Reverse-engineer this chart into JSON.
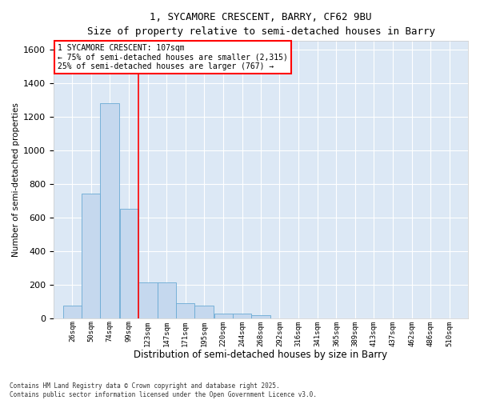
{
  "title_line1": "1, SYCAMORE CRESCENT, BARRY, CF62 9BU",
  "title_line2": "Size of property relative to semi-detached houses in Barry",
  "xlabel": "Distribution of semi-detached houses by size in Barry",
  "ylabel": "Number of semi-detached properties",
  "bar_color": "#c5d8ee",
  "bar_edge_color": "#6aaad4",
  "background_color": "#dce8f5",
  "vline_color": "red",
  "categories": [
    "26sqm",
    "50sqm",
    "74sqm",
    "99sqm",
    "123sqm",
    "147sqm",
    "171sqm",
    "195sqm",
    "220sqm",
    "244sqm",
    "268sqm",
    "292sqm",
    "316sqm",
    "341sqm",
    "365sqm",
    "389sqm",
    "413sqm",
    "437sqm",
    "462sqm",
    "486sqm",
    "510sqm"
  ],
  "bin_edges": [
    26,
    50,
    74,
    99,
    123,
    147,
    171,
    195,
    220,
    244,
    268,
    292,
    316,
    341,
    365,
    389,
    413,
    437,
    462,
    486,
    510
  ],
  "bin_width": 24,
  "values": [
    75,
    740,
    1280,
    650,
    215,
    215,
    90,
    75,
    30,
    30,
    20,
    0,
    0,
    0,
    0,
    0,
    0,
    0,
    0,
    0,
    0
  ],
  "vline_x_bin": 3,
  "ylim": [
    0,
    1650
  ],
  "yticks": [
    0,
    200,
    400,
    600,
    800,
    1000,
    1200,
    1400,
    1600
  ],
  "annotation_title": "1 SYCAMORE CRESCENT: 107sqm",
  "annotation_line1": "← 75% of semi-detached houses are smaller (2,315)",
  "annotation_line2": "25% of semi-detached houses are larger (767) →",
  "footnote_line1": "Contains HM Land Registry data © Crown copyright and database right 2025.",
  "footnote_line2": "Contains public sector information licensed under the Open Government Licence v3.0."
}
